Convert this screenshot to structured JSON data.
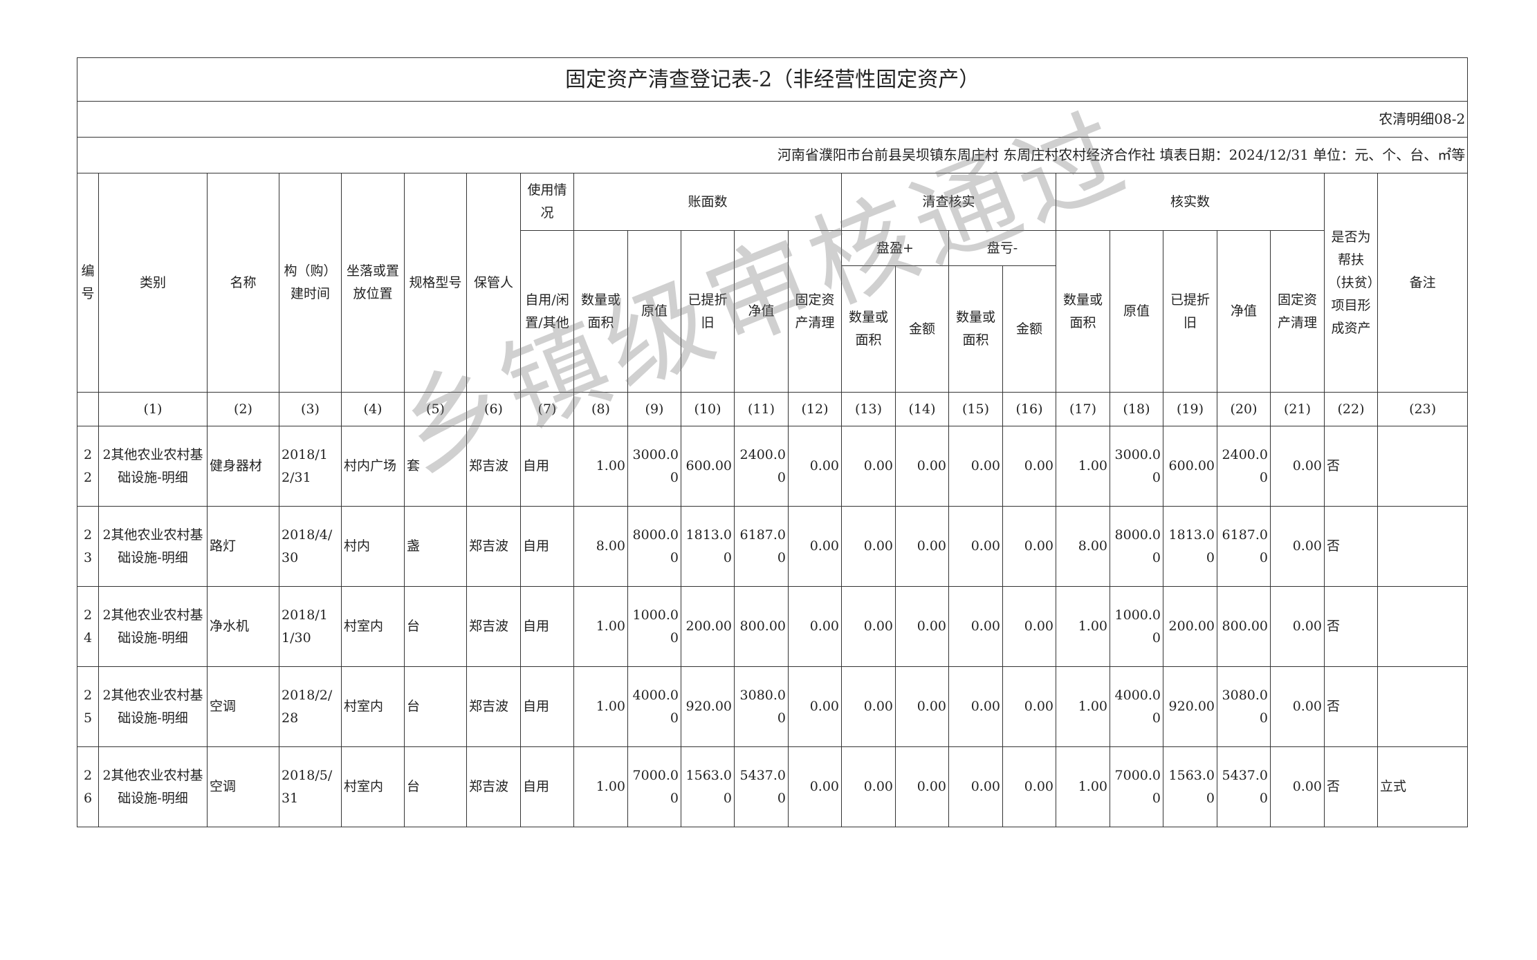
{
  "title": "固定资产清查登记表-2（非经营性固定资产）",
  "form_code": "农清明细08-2",
  "info_line": "河南省濮阳市台前县吴坝镇东周庄村  东周庄村农村经济合作社  填表日期：2024/12/31  单位：元、个、台、㎡等",
  "watermark": "乡镇级审核通过",
  "headers": {
    "no": "编号",
    "category": "类别",
    "name": "名称",
    "build_time": "构（购）建时间",
    "location": "坐落或置放位置",
    "spec": "规格型号",
    "keeper": "保管人",
    "usage": "使用情况",
    "book": "账面数",
    "check": "清查核实",
    "verified": "核实数",
    "poverty": "是否为帮扶（扶贫）项目形成资产",
    "remark": "备注",
    "usage_sub": "自用/闲置/其他",
    "qty": "数量或面积",
    "orig": "原值",
    "depr": "已提折旧",
    "net": "净值",
    "clear": "固定资产清理",
    "surplus": "盘盈+",
    "loss": "盘亏-",
    "amount": "金额"
  },
  "index_labels": [
    "(1)",
    "(2)",
    "(3)",
    "(4)",
    "(5)",
    "(6)",
    "(7)",
    "(8)",
    "(9)",
    "(10)",
    "(11)",
    "(12)",
    "(13)",
    "(14)",
    "(15)",
    "(16)",
    "(17)",
    "(18)",
    "(19)",
    "(20)",
    "(21)",
    "(22)",
    "(23)"
  ],
  "rows": [
    {
      "no": "22",
      "category": "2其他农业农村基础设施-明细",
      "name": "健身器材",
      "build_time": "2018/12/31",
      "location": "村内广场",
      "spec": "套",
      "keeper": "郑吉波",
      "usage": "自用",
      "v": [
        "1.00",
        "3000.00",
        "600.00",
        "2400.00",
        "0.00",
        "0.00",
        "0.00",
        "0.00",
        "0.00",
        "1.00",
        "3000.00",
        "600.00",
        "2400.00",
        "0.00"
      ],
      "poverty": "否",
      "remark": ""
    },
    {
      "no": "23",
      "category": "2其他农业农村基础设施-明细",
      "name": "路灯",
      "build_time": "2018/4/30",
      "location": "村内",
      "spec": "盏",
      "keeper": "郑吉波",
      "usage": "自用",
      "v": [
        "8.00",
        "8000.00",
        "1813.00",
        "6187.00",
        "0.00",
        "0.00",
        "0.00",
        "0.00",
        "0.00",
        "8.00",
        "8000.00",
        "1813.00",
        "6187.00",
        "0.00"
      ],
      "poverty": "否",
      "remark": ""
    },
    {
      "no": "24",
      "category": "2其他农业农村基础设施-明细",
      "name": "净水机",
      "build_time": "2018/11/30",
      "location": "村室内",
      "spec": "台",
      "keeper": "郑吉波",
      "usage": "自用",
      "v": [
        "1.00",
        "1000.00",
        "200.00",
        "800.00",
        "0.00",
        "0.00",
        "0.00",
        "0.00",
        "0.00",
        "1.00",
        "1000.00",
        "200.00",
        "800.00",
        "0.00"
      ],
      "poverty": "否",
      "remark": ""
    },
    {
      "no": "25",
      "category": "2其他农业农村基础设施-明细",
      "name": "空调",
      "build_time": "2018/2/28",
      "location": "村室内",
      "spec": "台",
      "keeper": "郑吉波",
      "usage": "自用",
      "v": [
        "1.00",
        "4000.00",
        "920.00",
        "3080.00",
        "0.00",
        "0.00",
        "0.00",
        "0.00",
        "0.00",
        "1.00",
        "4000.00",
        "920.00",
        "3080.00",
        "0.00"
      ],
      "poverty": "否",
      "remark": ""
    },
    {
      "no": "26",
      "category": "2其他农业农村基础设施-明细",
      "name": "空调",
      "build_time": "2018/5/31",
      "location": "村室内",
      "spec": "台",
      "keeper": "郑吉波",
      "usage": "自用",
      "v": [
        "1.00",
        "7000.00",
        "1563.00",
        "5437.00",
        "0.00",
        "0.00",
        "0.00",
        "0.00",
        "0.00",
        "1.00",
        "7000.00",
        "1563.00",
        "5437.00",
        "0.00"
      ],
      "poverty": "否",
      "remark": "立式"
    }
  ]
}
